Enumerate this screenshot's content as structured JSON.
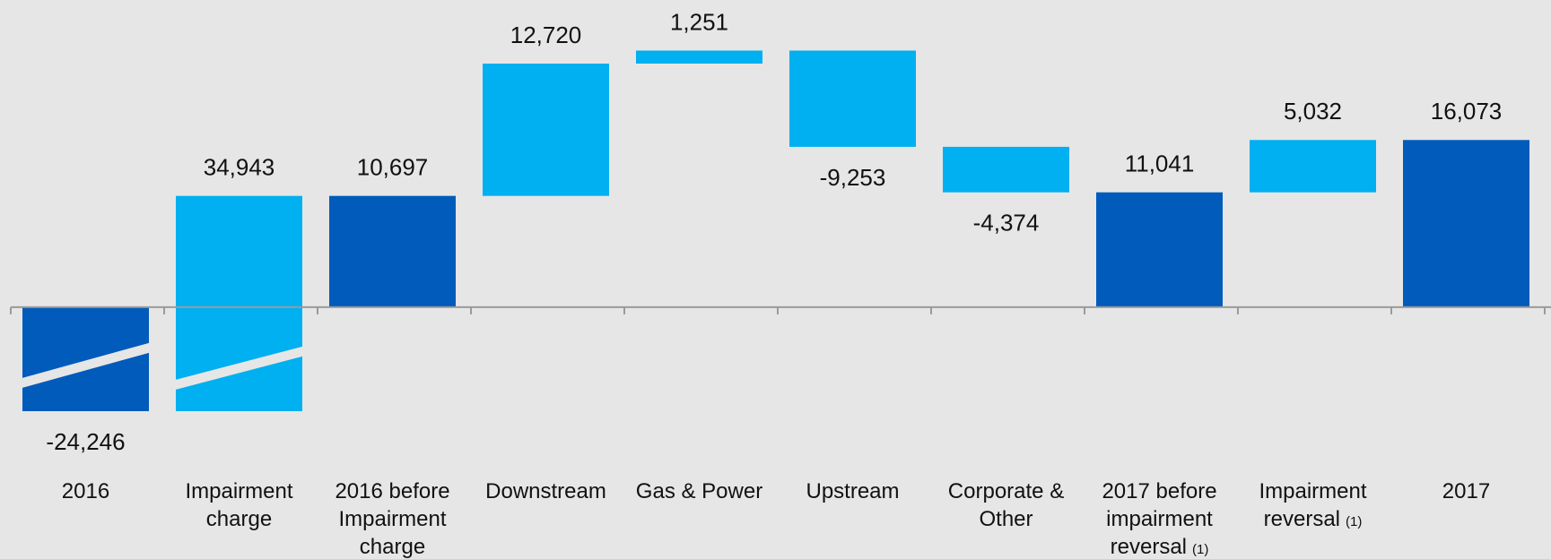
{
  "chart_data": {
    "type": "waterfall",
    "categories": [
      [
        "2016"
      ],
      [
        "Impairment",
        "charge"
      ],
      [
        "2016 before",
        "Impairment",
        "charge"
      ],
      [
        "Downstream"
      ],
      [
        "Gas & Power"
      ],
      [
        "Upstream"
      ],
      [
        "Corporate &",
        "Other"
      ],
      [
        "2017 before",
        "impairment",
        "reversal"
      ],
      [
        "Impairment",
        "reversal"
      ],
      [
        "2017"
      ]
    ],
    "category_notes": [
      null,
      null,
      null,
      null,
      null,
      null,
      null,
      "(1)",
      "(1)",
      null
    ],
    "values": [
      -24246,
      34943,
      10697,
      12720,
      1251,
      -9253,
      -4374,
      11041,
      5032,
      16073
    ],
    "value_labels": [
      "-24,246",
      "34,943",
      "10,697",
      "12,720",
      "1,251",
      "-9,253",
      "-4,374",
      "11,041",
      "5,032",
      "16,073"
    ],
    "is_total": [
      true,
      false,
      true,
      false,
      false,
      false,
      false,
      true,
      false,
      true
    ],
    "total_color": "#005bbb",
    "delta_color": "#00b0f0",
    "ylim": [
      -10000,
      26000
    ],
    "axis_break": true
  }
}
